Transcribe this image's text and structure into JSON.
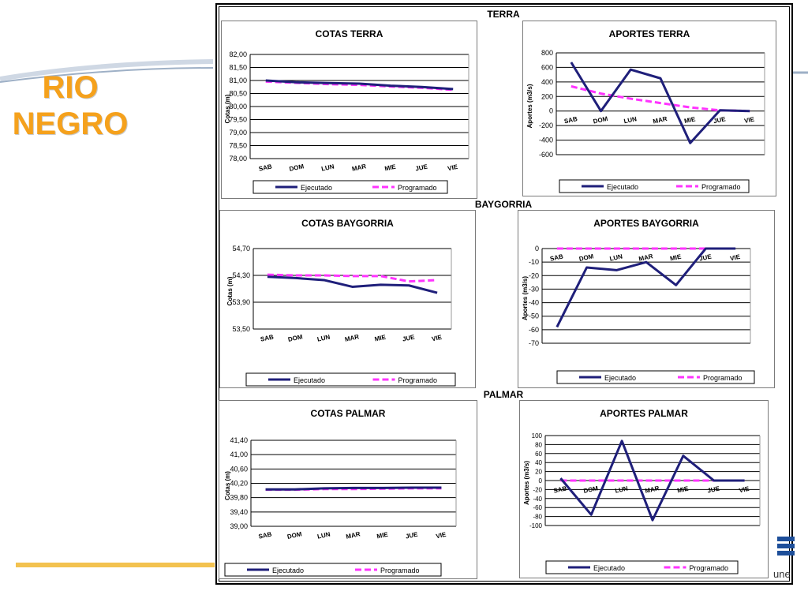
{
  "slide": {
    "title": "RIO NEGRO",
    "title_line1": "RIO",
    "title_line2": "NEGRO",
    "accent_color": "#f5a11c",
    "brand_text": "une",
    "sections": [
      "TERRA",
      "BAYGORRIA",
      "PALMAR"
    ]
  },
  "colors": {
    "ejecutado": "#1f1f7a",
    "programado": "#ff33ff"
  },
  "chart_data": [
    {
      "id": "cotas_terra",
      "type": "line",
      "title": "COTAS TERRA",
      "ylabel": "Cotas (m)",
      "categories": [
        "SAB",
        "DOM",
        "LUN",
        "MAR",
        "MIE",
        "JUE",
        "VIE"
      ],
      "ylim": [
        78.0,
        82.0
      ],
      "yticks": [
        "82,00",
        "81,50",
        "81,00",
        "80,50",
        "80,00",
        "79,50",
        "79,00",
        "78,50",
        "78,00"
      ],
      "series": [
        {
          "name": "Ejecutado",
          "values": [
            81.0,
            80.93,
            80.9,
            80.88,
            80.8,
            80.75,
            80.67
          ]
        },
        {
          "name": "Programado",
          "values": [
            80.96,
            80.91,
            80.86,
            80.83,
            80.77,
            80.72,
            80.64
          ]
        }
      ],
      "legend": "bottom"
    },
    {
      "id": "aportes_terra",
      "type": "line",
      "title": "APORTES TERRA",
      "ylabel": "Aportes (m3/s)",
      "categories": [
        "SAB",
        "DOM",
        "LUN",
        "MAR",
        "MIE",
        "JUE",
        "VIE"
      ],
      "ylim": [
        -600,
        800
      ],
      "yticks": [
        "800",
        "600",
        "400",
        "200",
        "0",
        "-200",
        "-400",
        "-600"
      ],
      "series": [
        {
          "name": "Ejecutado",
          "values": [
            670,
            0,
            570,
            450,
            -440,
            10,
            0
          ]
        },
        {
          "name": "Programado",
          "values": [
            340,
            240,
            170,
            110,
            50,
            10,
            0
          ]
        }
      ],
      "legend": "bottom"
    },
    {
      "id": "cotas_baygorria",
      "type": "line",
      "title": "COTAS BAYGORRIA",
      "ylabel": "Cotas (m)",
      "categories": [
        "SAB",
        "DOM",
        "LUN",
        "MAR",
        "MIE",
        "JUE",
        "VIE"
      ],
      "ylim": [
        53.5,
        54.7
      ],
      "yticks": [
        "54,70",
        "54,30",
        "53,90",
        "53,50"
      ],
      "series": [
        {
          "name": "Ejecutado",
          "values": [
            54.28,
            54.26,
            54.23,
            54.13,
            54.16,
            54.15,
            54.04
          ]
        },
        {
          "name": "Programado",
          "values": [
            54.31,
            54.3,
            54.3,
            54.29,
            54.29,
            54.21,
            54.23
          ]
        }
      ],
      "legend": "bottom"
    },
    {
      "id": "aportes_baygorria",
      "type": "line",
      "title": "APORTES BAYGORRIA",
      "ylabel": "Aportes (m3/s)",
      "categories": [
        "SAB",
        "DOM",
        "LUN",
        "MAR",
        "MIE",
        "JUE",
        "VIE"
      ],
      "ylim": [
        -70,
        0
      ],
      "yticks": [
        "0",
        "-10",
        "-20",
        "-30",
        "-40",
        "-50",
        "-60",
        "-70"
      ],
      "series": [
        {
          "name": "Ejecutado",
          "values": [
            -58,
            -14,
            -16,
            -10,
            -27,
            0,
            0
          ]
        },
        {
          "name": "Programado",
          "values": [
            0,
            0,
            0,
            0,
            0,
            0,
            0
          ]
        }
      ],
      "legend": "bottom"
    },
    {
      "id": "cotas_palmar",
      "type": "line",
      "title": "COTAS PALMAR",
      "ylabel": "Cotas (m)",
      "categories": [
        "SAB",
        "DOM",
        "LUN",
        "MAR",
        "MIE",
        "JUE",
        "VIE"
      ],
      "ylim": [
        39.0,
        41.4
      ],
      "yticks": [
        "41,40",
        "41,00",
        "40,60",
        "40,20",
        "39,80",
        "39,40",
        "39,00"
      ],
      "series": [
        {
          "name": "Ejecutado",
          "values": [
            40.03,
            40.03,
            40.06,
            40.07,
            40.07,
            40.08,
            40.08
          ]
        },
        {
          "name": "Programado",
          "values": [
            40.02,
            40.02,
            40.04,
            40.04,
            40.05,
            40.06,
            40.06
          ]
        }
      ],
      "legend": "bottom"
    },
    {
      "id": "aportes_palmar",
      "type": "line",
      "title": "APORTES PALMAR",
      "ylabel": "Aportes (m3/s)",
      "categories": [
        "SAB",
        "DOM",
        "LUN",
        "MAR",
        "MIE",
        "JUE",
        "VIE"
      ],
      "ylim": [
        -100,
        100
      ],
      "yticks": [
        "100",
        "80",
        "60",
        "40",
        "20",
        "0",
        "-20",
        "-40",
        "-60",
        "-80",
        "-100"
      ],
      "series": [
        {
          "name": "Ejecutado",
          "values": [
            5,
            -76,
            88,
            -88,
            55,
            0,
            0
          ]
        },
        {
          "name": "Programado",
          "values": [
            0,
            0,
            0,
            0,
            0,
            0,
            0
          ]
        }
      ],
      "legend": "bottom"
    }
  ]
}
